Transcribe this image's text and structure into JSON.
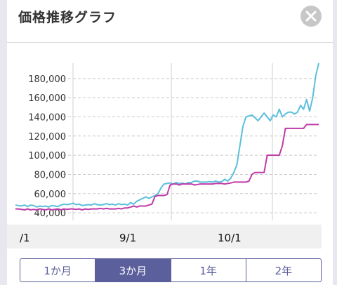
{
  "dialog": {
    "title": "価格推移グラフ",
    "close_icon": "close-icon"
  },
  "range_tabs": [
    {
      "label": "1か月",
      "active": false
    },
    {
      "label": "3か月",
      "active": true
    },
    {
      "label": "1年",
      "active": false
    },
    {
      "label": "2年",
      "active": false
    }
  ],
  "chart_data": {
    "type": "line",
    "y_ticks": [
      "40,000",
      "60,000",
      "80,000",
      "100,000",
      "120,000",
      "140,000",
      "160,000",
      "180,000"
    ],
    "x_tick_labels": [
      "/1",
      "9/1",
      "10/1"
    ],
    "ylim": [
      32000,
      196000
    ],
    "grid": true,
    "series": [
      {
        "color": "#5bbfdc",
        "values": [
          48000,
          47500,
          47000,
          48000,
          46500,
          48000,
          47500,
          46000,
          47000,
          46500,
          47000,
          46000,
          47500,
          47000,
          46500,
          48000,
          49000,
          48500,
          49000,
          50000,
          48500,
          49000,
          47500,
          48000,
          48500,
          48000,
          49500,
          48500,
          48000,
          48500,
          49500,
          48500,
          49000,
          48000,
          49500,
          48500,
          49000,
          48000,
          50500,
          49000,
          52000,
          53500,
          55000,
          56500,
          55000,
          56500,
          58000,
          60000,
          66000,
          70000,
          70500,
          71000,
          70000,
          71500,
          70500,
          71000,
          70000,
          71500,
          71500,
          73000,
          73000,
          72000,
          72000,
          72000,
          72500,
          72000,
          73000,
          72000,
          72500,
          75000,
          73000,
          76000,
          82000,
          90000,
          110000,
          130000,
          140000,
          141000,
          142000,
          139000,
          136000,
          140000,
          144000,
          140000,
          136000,
          142000,
          140000,
          148000,
          140000,
          143000,
          145000,
          145000,
          143000,
          145000,
          152000,
          148000,
          158000,
          146000,
          160000,
          183000,
          196000
        ]
      },
      {
        "color": "#c03aa8",
        "values": [
          44000,
          44000,
          43500,
          43000,
          44000,
          43000,
          43500,
          43000,
          44000,
          43500,
          43000,
          44000,
          43000,
          43500,
          44000,
          43000,
          44000,
          43500,
          44000,
          44000,
          43500,
          44000,
          43000,
          44000,
          43500,
          44000,
          44000,
          44000,
          44500,
          44000,
          44500,
          44000,
          44000,
          44000,
          44500,
          44000,
          45000,
          45000,
          46000,
          47000,
          46000,
          47000,
          47000,
          47000,
          48000,
          49000,
          57000,
          58000,
          58000,
          58000,
          59000,
          69000,
          70000,
          70000,
          69000,
          70000,
          70000,
          70000,
          70000,
          69000,
          69500,
          70000,
          70000,
          70000,
          70000,
          70000,
          70500,
          70500,
          70500,
          70000,
          70500,
          71000,
          72000,
          72000,
          72000,
          72000,
          72000,
          73000,
          80000,
          82000,
          82000,
          82000,
          82000,
          100000,
          100000,
          100000,
          100000,
          100000,
          110000,
          128000,
          128000,
          128000,
          128000,
          128000,
          128000,
          128000,
          132000,
          132000,
          132000,
          132000,
          132000
        ]
      }
    ]
  }
}
